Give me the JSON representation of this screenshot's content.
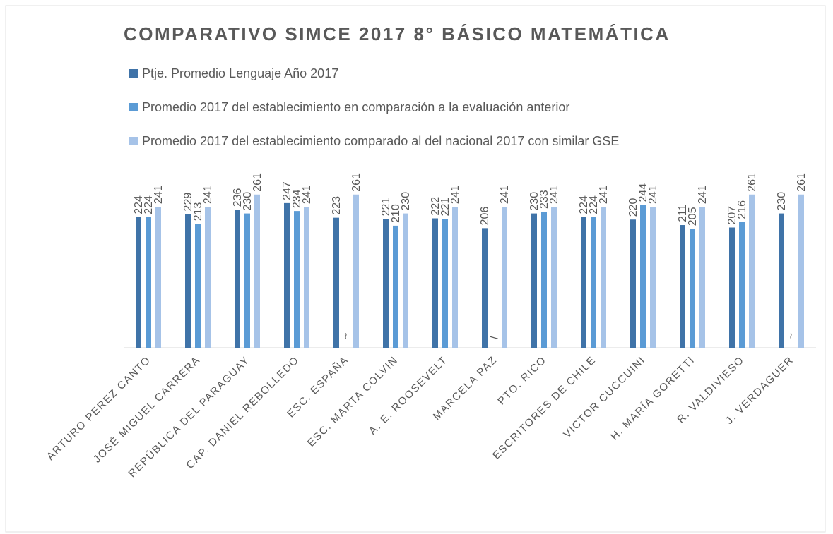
{
  "chart_data": {
    "type": "bar",
    "title": "COMPARATIVO SIMCE 2017 8° BÁSICO MATEMÁTICA",
    "categories": [
      "ARTURO PEREZ CANTO",
      "JOSÉ MIGUEL CARRERA",
      "REPÚBLICA DEL PARAGUAY",
      "CAP. DANIEL REBOLLEDO",
      "ESC. ESPAÑA",
      "ESC. MARTA COLVIN",
      "A. E. ROOSEVELT",
      "MARCELA PAZ",
      "PTO. RICO",
      "ESCRITORES DE CHILE",
      "VICTOR CUCCUINI",
      "H. MARÍA GORETTI",
      "R. VALDIVIESO",
      "J. VERDAGUER"
    ],
    "series": [
      {
        "name": "Ptje. Promedio Lenguaje Año 2017",
        "color": "#3f73a8",
        "values": [
          224,
          229,
          236,
          247,
          223,
          221,
          222,
          206,
          230,
          224,
          220,
          211,
          207,
          230
        ]
      },
      {
        "name": "Promedio 2017 del establecimiento en comparación a la evaluación anterior",
        "color": "#5b9bd5",
        "values": [
          224,
          213,
          230,
          234,
          null,
          210,
          221,
          null,
          233,
          224,
          244,
          205,
          216,
          null
        ],
        "value_labels": [
          "224",
          "213",
          "230",
          "234",
          "~",
          "210",
          "221",
          "/",
          "233",
          "224",
          "244",
          "205",
          "216",
          "~"
        ]
      },
      {
        "name": "Promedio 2017 del establecimiento comparado al del nacional 2017 con similar GSE",
        "color": "#a6c3e8",
        "values": [
          241,
          241,
          261,
          241,
          261,
          230,
          241,
          241,
          241,
          241,
          241,
          241,
          261,
          261
        ]
      }
    ],
    "ylim": [
      10,
      300
    ],
    "legend": "top"
  }
}
